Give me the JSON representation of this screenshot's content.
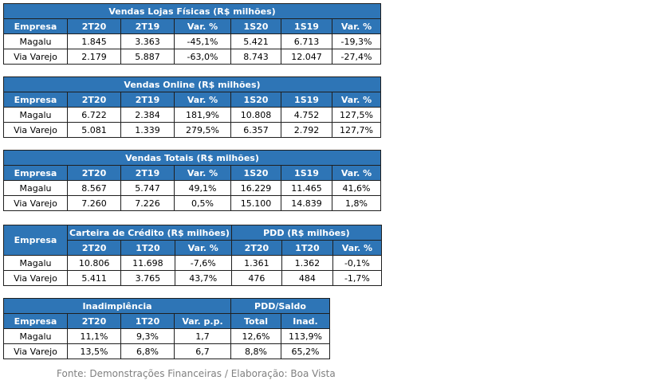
{
  "tables": [
    {
      "title": "Vendas Lojas Físicas (R$ milhões)",
      "headers": [
        "Empresa",
        "2T20",
        "2T19",
        "Var. %",
        "1S20",
        "1S19",
        "Var. %"
      ],
      "rows": [
        [
          "Magalu",
          "1.845",
          "3.363",
          "-45,1%",
          "5.421",
          "6.713",
          "-19,3%"
        ],
        [
          "Via Varejo",
          "2.179",
          "5.887",
          "-63,0%",
          "8.743",
          "12.047",
          "-27,4%"
        ]
      ]
    },
    {
      "title": "Vendas Online (R$ milhões)",
      "headers": [
        "Empresa",
        "2T20",
        "2T19",
        "Var. %",
        "1S20",
        "1S19",
        "Var. %"
      ],
      "rows": [
        [
          "Magalu",
          "6.722",
          "2.384",
          "181,9%",
          "10.808",
          "4.752",
          "127,5%"
        ],
        [
          "Via Varejo",
          "5.081",
          "1.339",
          "279,5%",
          "6.357",
          "2.792",
          "127,7%"
        ]
      ]
    },
    {
      "title": "Vendas Totais (R$ milhões)",
      "headers": [
        "Empresa",
        "2T20",
        "2T19",
        "Var. %",
        "1S20",
        "1S19",
        "Var. %"
      ],
      "rows": [
        [
          "Magalu",
          "8.567",
          "5.747",
          "49,1%",
          "16.229",
          "11.465",
          "41,6%"
        ],
        [
          "Via Varejo",
          "7.260",
          "7.226",
          "0,5%",
          "15.100",
          "14.839",
          "1,8%"
        ]
      ]
    },
    {
      "empresa_header": "Empresa",
      "group1": "Carteira de Crédito (R$ milhões)",
      "group2": "PDD (R$ milhões)",
      "headers": [
        "2T20",
        "1T20",
        "Var. %",
        "2T20",
        "1T20",
        "Var. %"
      ],
      "rows": [
        [
          "Magalu",
          "10.806",
          "11.698",
          "-7,6%",
          "1.361",
          "1.362",
          "-0,1%"
        ],
        [
          "Via Varejo",
          "5.411",
          "3.765",
          "43,7%",
          "476",
          "484",
          "-1,7%"
        ]
      ]
    },
    {
      "group1": "Inadimplência",
      "group2": "PDD/Saldo",
      "headers": [
        "Empresa",
        "2T20",
        "1T20",
        "Var. p.p.",
        "Total",
        "Inad."
      ],
      "rows": [
        [
          "Magalu",
          "11,1%",
          "9,3%",
          "1,7",
          "12,6%",
          "113,9%"
        ],
        [
          "Via Varejo",
          "13,5%",
          "6,8%",
          "6,7",
          "8,8%",
          "65,2%"
        ]
      ]
    }
  ],
  "source": "Fonte: Demonstrações Financeiras / Elaboração: Boa Vista",
  "colors": {
    "header_bg": "#2e75b6",
    "header_text": "#ffffff",
    "border": "#1f1f1f",
    "source_text": "#808080"
  }
}
